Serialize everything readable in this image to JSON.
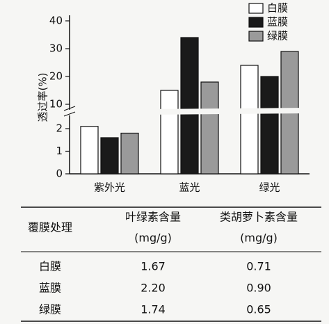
{
  "chart_data": {
    "type": "bar",
    "y_label": "透过率(%)",
    "categories": [
      "紫外光",
      "蓝光",
      "绿光"
    ],
    "series": [
      {
        "name": "白膜",
        "color": "#ffffff",
        "values": [
          2.1,
          15,
          24
        ]
      },
      {
        "name": "蓝膜",
        "color": "#1a1a1a",
        "values": [
          1.6,
          34,
          20
        ]
      },
      {
        "name": "绿膜",
        "color": "#9a9a9a",
        "values": [
          1.8,
          18,
          29
        ]
      }
    ],
    "ylim": [
      0,
      40
    ],
    "y_break": [
      2.4,
      9
    ],
    "yticks": [
      0,
      1,
      2,
      10,
      20,
      30,
      40
    ],
    "legend": "upper-right"
  },
  "table": {
    "header": [
      "覆膜处理",
      "叶绿素含量",
      "(mg/g)",
      "类胡萝卜素含量",
      "(mg/g)"
    ],
    "rows": [
      [
        "白膜",
        "1.67",
        "0.71"
      ],
      [
        "蓝膜",
        "2.20",
        "0.90"
      ],
      [
        "绿膜",
        "1.74",
        "0.65"
      ]
    ]
  }
}
